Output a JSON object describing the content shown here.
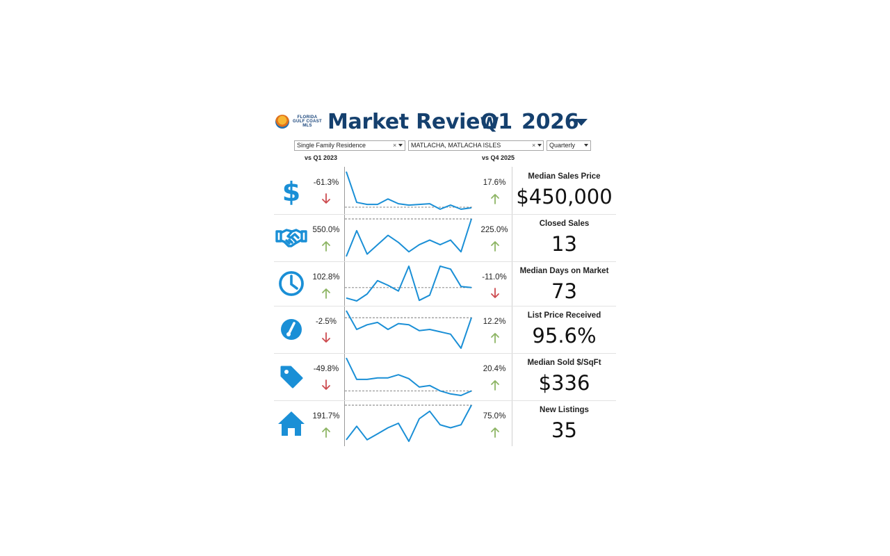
{
  "logo": {
    "lines": [
      "FLORIDA",
      "GULF COAST",
      "MLS"
    ]
  },
  "header": {
    "title": "Market Review",
    "quarter": "Q1",
    "year": "2026"
  },
  "filters": {
    "property_type": "Single Family Residence",
    "area": "MATLACHA, MATLACHA ISLES",
    "period": "Quarterly",
    "clear_glyph": "×"
  },
  "compare": {
    "left": "vs Q1 2023",
    "right": "vs Q4 2025"
  },
  "colors": {
    "accent": "#1a8fd6",
    "title": "#15406e",
    "up": "#8db564",
    "down": "#cc4a4f"
  },
  "metrics": [
    {
      "icon": "dollar-icon",
      "label": "Median Sales Price",
      "value": "$450,000",
      "yoy": "-61.3%",
      "yoy_dir": "down",
      "qoq": "17.6%",
      "qoq_dir": "up",
      "spark": [
        100,
        55,
        52,
        52,
        60,
        53,
        51,
        52,
        53,
        45,
        51,
        45,
        47
      ],
      "ref": 48
    },
    {
      "icon": "handshake-icon",
      "label": "Closed Sales",
      "value": "13",
      "yoy": "550.0%",
      "yoy_dir": "up",
      "qoq": "225.0%",
      "qoq_dir": "up",
      "spark": [
        2,
        13,
        3,
        7,
        11,
        8,
        4,
        7,
        9,
        7,
        9,
        4,
        18
      ],
      "ref": 18
    },
    {
      "icon": "clock-icon",
      "label": "Median Days on Market",
      "value": "73",
      "yoy": "102.8%",
      "yoy_dir": "up",
      "qoq": "-11.0%",
      "qoq_dir": "down",
      "spark": [
        30,
        25,
        37,
        60,
        52,
        42,
        85,
        26,
        35,
        85,
        80,
        50,
        48
      ],
      "ref": 48
    },
    {
      "icon": "gauge-icon",
      "label": "List Price Received",
      "value": "95.6%",
      "yoy": "-2.5%",
      "yoy_dir": "down",
      "qoq": "12.2%",
      "qoq_dir": "up",
      "spark": [
        98,
        82,
        86,
        88,
        82,
        87,
        86,
        81,
        82,
        80,
        78,
        66,
        92
      ],
      "ref": 92
    },
    {
      "icon": "price-tag-icon",
      "label": "Median Sold $/SqFt",
      "value": "$336",
      "yoy": "-49.8%",
      "yoy_dir": "down",
      "qoq": "20.4%",
      "qoq_dir": "up",
      "spark": [
        100,
        72,
        72,
        74,
        74,
        78,
        73,
        62,
        64,
        57,
        53,
        51,
        57
      ],
      "ref": 57
    },
    {
      "icon": "house-icon",
      "label": "New Listings",
      "value": "35",
      "yoy": "191.7%",
      "yoy_dir": "up",
      "qoq": "75.0%",
      "qoq_dir": "up",
      "spark": [
        12,
        21,
        12,
        16,
        20,
        23,
        11,
        26,
        31,
        22,
        20,
        22,
        35
      ],
      "ref": 35
    }
  ]
}
